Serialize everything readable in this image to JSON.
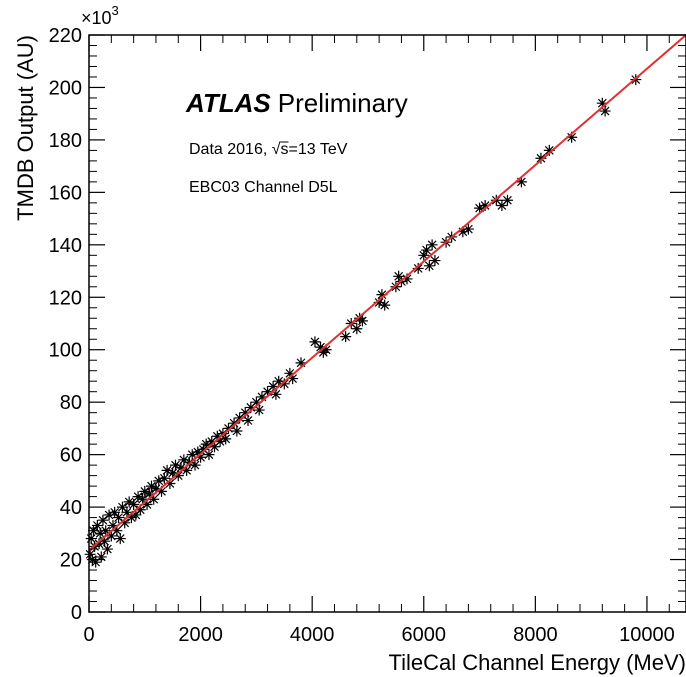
{
  "chart_data": {
    "type": "scatter",
    "title": "",
    "xlabel": "TileCal Channel Energy (MeV)",
    "ylabel": "TMDB Output (AU)",
    "xlim": [
      0,
      10700
    ],
    "ylim": [
      0,
      220000
    ],
    "y_multiplier_base": "×10",
    "y_multiplier_exp": "3",
    "grid": false,
    "legend": "none",
    "x_ticks": [
      {
        "value": 0,
        "label": "0"
      },
      {
        "value": 2000,
        "label": "2000"
      },
      {
        "value": 4000,
        "label": "4000"
      },
      {
        "value": 6000,
        "label": "6000"
      },
      {
        "value": 8000,
        "label": "8000"
      },
      {
        "value": 10000,
        "label": "10000"
      }
    ],
    "y_ticks": [
      {
        "value": 0,
        "label": "0"
      },
      {
        "value": 20000,
        "label": "20"
      },
      {
        "value": 40000,
        "label": "40"
      },
      {
        "value": 60000,
        "label": "60"
      },
      {
        "value": 80000,
        "label": "80"
      },
      {
        "value": 100000,
        "label": "100"
      },
      {
        "value": 120000,
        "label": "120"
      },
      {
        "value": 140000,
        "label": "140"
      },
      {
        "value": 160000,
        "label": "160"
      },
      {
        "value": 180000,
        "label": "180"
      },
      {
        "value": 200000,
        "label": "200"
      },
      {
        "value": 220000,
        "label": "220"
      }
    ],
    "fit": {
      "name": "",
      "color": "#e03030",
      "points": [
        [
          0,
          23500
        ],
        [
          10700,
          220000
        ]
      ]
    },
    "marker_color": "#000000",
    "points": [
      [
        20,
        22000
      ],
      [
        40,
        28000
      ],
      [
        60,
        20000
      ],
      [
        80,
        31000
      ],
      [
        100,
        25000
      ],
      [
        120,
        19000
      ],
      [
        150,
        33000
      ],
      [
        180,
        26000
      ],
      [
        200,
        30000
      ],
      [
        220,
        21000
      ],
      [
        250,
        35000
      ],
      [
        280,
        27000
      ],
      [
        300,
        31000
      ],
      [
        330,
        24000
      ],
      [
        360,
        37000
      ],
      [
        400,
        29000
      ],
      [
        430,
        33000
      ],
      [
        460,
        38000
      ],
      [
        500,
        31000
      ],
      [
        530,
        36000
      ],
      [
        560,
        28000
      ],
      [
        600,
        40000
      ],
      [
        640,
        34000
      ],
      [
        680,
        38000
      ],
      [
        720,
        42000
      ],
      [
        760,
        36000
      ],
      [
        800,
        41000
      ],
      [
        840,
        37000
      ],
      [
        880,
        44000
      ],
      [
        920,
        39000
      ],
      [
        960,
        43000
      ],
      [
        1000,
        46000
      ],
      [
        1040,
        41000
      ],
      [
        1080,
        45000
      ],
      [
        1120,
        48000
      ],
      [
        1160,
        43000
      ],
      [
        1200,
        47000
      ],
      [
        1250,
        50000
      ],
      [
        1300,
        46000
      ],
      [
        1350,
        51000
      ],
      [
        1400,
        54000
      ],
      [
        1450,
        49000
      ],
      [
        1500,
        53000
      ],
      [
        1550,
        56000
      ],
      [
        1600,
        52000
      ],
      [
        1650,
        55000
      ],
      [
        1700,
        58000
      ],
      [
        1750,
        54000
      ],
      [
        1800,
        57000
      ],
      [
        1850,
        60000
      ],
      [
        1900,
        56000
      ],
      [
        1950,
        61000
      ],
      [
        2000,
        59000
      ],
      [
        2050,
        62000
      ],
      [
        2100,
        64000
      ],
      [
        2150,
        60000
      ],
      [
        2200,
        65000
      ],
      [
        2250,
        63000
      ],
      [
        2300,
        67000
      ],
      [
        2350,
        65000
      ],
      [
        2400,
        68000
      ],
      [
        2450,
        66000
      ],
      [
        2500,
        70000
      ],
      [
        2600,
        72000
      ],
      [
        2650,
        69000
      ],
      [
        2700,
        74000
      ],
      [
        2800,
        76000
      ],
      [
        2850,
        73000
      ],
      [
        2900,
        78000
      ],
      [
        3000,
        80000
      ],
      [
        3050,
        77000
      ],
      [
        3100,
        82000
      ],
      [
        3200,
        84000
      ],
      [
        3300,
        86000
      ],
      [
        3350,
        83000
      ],
      [
        3400,
        88000
      ],
      [
        3500,
        87000
      ],
      [
        3600,
        91000
      ],
      [
        3650,
        89000
      ],
      [
        3800,
        95000
      ],
      [
        4050,
        103000
      ],
      [
        4150,
        101000
      ],
      [
        4200,
        99000
      ],
      [
        4250,
        100000
      ],
      [
        4600,
        105000
      ],
      [
        4700,
        110000
      ],
      [
        4800,
        108000
      ],
      [
        4850,
        112000
      ],
      [
        4900,
        111000
      ],
      [
        5200,
        118000
      ],
      [
        5250,
        121000
      ],
      [
        5300,
        117000
      ],
      [
        5500,
        124000
      ],
      [
        5550,
        128000
      ],
      [
        5600,
        126000
      ],
      [
        5700,
        127000
      ],
      [
        5900,
        131000
      ],
      [
        6000,
        136000
      ],
      [
        6050,
        138000
      ],
      [
        6100,
        132000
      ],
      [
        6150,
        140000
      ],
      [
        6200,
        134000
      ],
      [
        6400,
        141000
      ],
      [
        6500,
        143000
      ],
      [
        6700,
        145000
      ],
      [
        6800,
        146000
      ],
      [
        7000,
        154000
      ],
      [
        7100,
        155000
      ],
      [
        7300,
        157000
      ],
      [
        7400,
        155000
      ],
      [
        7500,
        157000
      ],
      [
        7750,
        164000
      ],
      [
        8100,
        173000
      ],
      [
        8250,
        176000
      ],
      [
        8650,
        181000
      ],
      [
        9200,
        194000
      ],
      [
        9250,
        191000
      ],
      [
        9800,
        203000
      ]
    ]
  },
  "annotations": {
    "atlas": "ATLAS",
    "preliminary": "Preliminary",
    "data_prefix": "Data 2016, ",
    "sqrt_symbol": "√",
    "sqrt_arg": "s",
    "energy": "=13 TeV",
    "channel": "EBC03 Channel D5L"
  }
}
